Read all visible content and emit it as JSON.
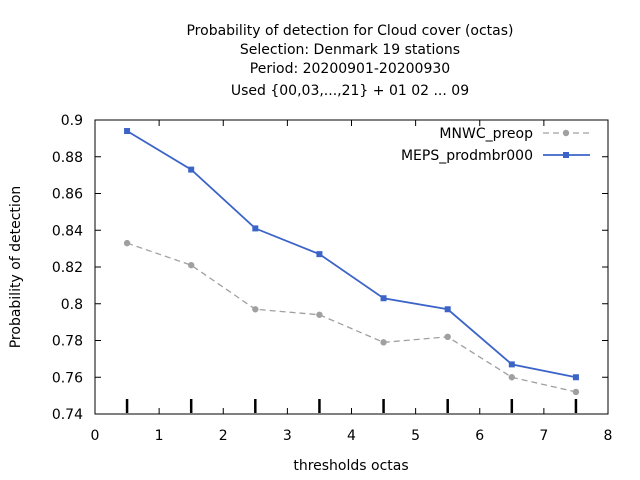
{
  "chart_data": {
    "type": "line",
    "title_lines": [
      "Probability of detection  for Cloud cover (octas)",
      "Selection: Denmark     19 stations",
      "Period: 20200901-20200930",
      "Used {00,03,...,21} + 01 02 ... 09"
    ],
    "xlabel": "thresholds octas",
    "ylabel": "Probability of detection",
    "xlim": [
      0,
      8
    ],
    "ylim": [
      0.74,
      0.9
    ],
    "xticks": [
      0,
      1,
      2,
      3,
      4,
      5,
      6,
      7,
      8
    ],
    "yticks": [
      0.74,
      0.76,
      0.78,
      0.8,
      0.82,
      0.84,
      0.86,
      0.88,
      0.9
    ],
    "ytick_labels": [
      "0.74",
      "0.76",
      "0.78",
      "0.8",
      "0.82",
      "0.84",
      "0.86",
      "0.88",
      "0.9"
    ],
    "grid": false,
    "legend_position": "top-right",
    "x": [
      0.5,
      1.5,
      2.5,
      3.5,
      4.5,
      5.5,
      6.5,
      7.5
    ],
    "series": [
      {
        "name": "MNWC_preop",
        "color": "#a0a0a0",
        "style": "dashed",
        "values": [
          0.833,
          0.821,
          0.797,
          0.794,
          0.779,
          0.782,
          0.76,
          0.752
        ]
      },
      {
        "name": "MEPS_prodmbr000",
        "color": "#3c64c8",
        "style": "solid",
        "values": [
          0.894,
          0.873,
          0.841,
          0.827,
          0.803,
          0.797,
          0.767,
          0.76
        ]
      }
    ]
  }
}
